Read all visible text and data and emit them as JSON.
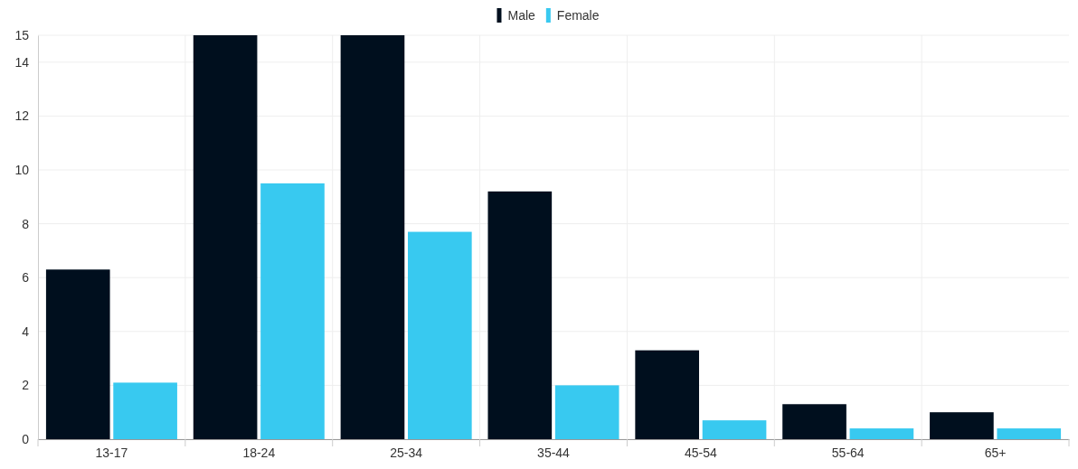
{
  "chart_data": {
    "type": "bar",
    "categories": [
      "13-17",
      "18-24",
      "25-34",
      "35-44",
      "45-54",
      "55-64",
      "65+"
    ],
    "series": [
      {
        "name": "Male",
        "color": "#000f1e",
        "values": [
          6.3,
          15,
          15,
          9.2,
          3.3,
          1.3,
          1.0
        ]
      },
      {
        "name": "Female",
        "color": "#38c9f0",
        "values": [
          2.1,
          9.5,
          7.7,
          2.0,
          0.7,
          0.4,
          0.4
        ]
      }
    ],
    "ylim": [
      0,
      15
    ],
    "yticks": [
      0,
      2,
      4,
      6,
      8,
      10,
      12,
      14,
      15
    ],
    "grid": true,
    "legend": "top"
  }
}
